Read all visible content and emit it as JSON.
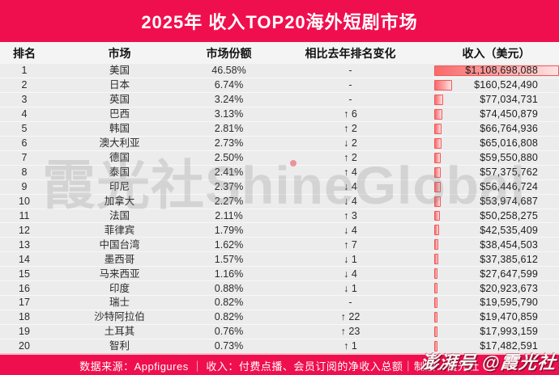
{
  "title": "2025年 收入TOP20海外短剧市场",
  "footer": {
    "text": "数据来源：Appfigures ｜ 收入：付费点播、会员订阅的净收入总额｜制图：霞光社"
  },
  "watermarks": {
    "center": "霞光社ShineGlobal",
    "corner": "澎湃号 @霞光社"
  },
  "colors": {
    "accent_red": "#F00F4E",
    "bar_border": "#EF5A5C",
    "bar_fill_start": "#F8696B",
    "bar_fill_end": "#FFE3E3",
    "table_bg": "#ECECEC"
  },
  "chart_data": {
    "type": "table",
    "title": "2025年 收入TOP20海外短剧市场",
    "columns": [
      "排名",
      "市场",
      "市场份额",
      "相比去年排名变化",
      "收入（美元）"
    ],
    "max_revenue": 1108698088,
    "rows": [
      {
        "rank": "1",
        "market": "美国",
        "share": "46.58%",
        "change": "-",
        "revenue": "$1,108,698,088",
        "value": 1108698088
      },
      {
        "rank": "2",
        "market": "日本",
        "share": "6.74%",
        "change": "-",
        "revenue": "$160,524,490",
        "value": 160524490
      },
      {
        "rank": "3",
        "market": "英国",
        "share": "3.24%",
        "change": "-",
        "revenue": "$77,034,731",
        "value": 77034731
      },
      {
        "rank": "4",
        "market": "巴西",
        "share": "3.13%",
        "change": "↑ 6",
        "revenue": "$74,450,879",
        "value": 74450879
      },
      {
        "rank": "5",
        "market": "韩国",
        "share": "2.81%",
        "change": "↑ 2",
        "revenue": "$66,764,936",
        "value": 66764936
      },
      {
        "rank": "6",
        "market": "澳大利亚",
        "share": "2.73%",
        "change": "↓ 2",
        "revenue": "$65,016,808",
        "value": 65016808
      },
      {
        "rank": "7",
        "market": "德国",
        "share": "2.50%",
        "change": "↑ 2",
        "revenue": "$59,550,880",
        "value": 59550880
      },
      {
        "rank": "8",
        "market": "泰国",
        "share": "2.41%",
        "change": "↑ 4",
        "revenue": "$57,375,762",
        "value": 57375762
      },
      {
        "rank": "9",
        "market": "印尼",
        "share": "2.37%",
        "change": "↓ 4",
        "revenue": "$56,446,724",
        "value": 56446724
      },
      {
        "rank": "10",
        "market": "加拿大",
        "share": "2.27%",
        "change": "↓ 4",
        "revenue": "$53,974,687",
        "value": 53974687
      },
      {
        "rank": "11",
        "market": "法国",
        "share": "2.11%",
        "change": "↑ 3",
        "revenue": "$50,258,275",
        "value": 50258275
      },
      {
        "rank": "12",
        "market": "菲律宾",
        "share": "1.79%",
        "change": "↓ 4",
        "revenue": "$42,535,409",
        "value": 42535409
      },
      {
        "rank": "13",
        "market": "中国台湾",
        "share": "1.62%",
        "change": "↑ 7",
        "revenue": "$38,454,503",
        "value": 38454503
      },
      {
        "rank": "14",
        "market": "墨西哥",
        "share": "1.57%",
        "change": "↓ 1",
        "revenue": "$37,385,612",
        "value": 37385612
      },
      {
        "rank": "15",
        "market": "马来西亚",
        "share": "1.16%",
        "change": "↓ 4",
        "revenue": "$27,647,599",
        "value": 27647599
      },
      {
        "rank": "16",
        "market": "印度",
        "share": "0.88%",
        "change": "↓ 1",
        "revenue": "$20,923,673",
        "value": 20923673
      },
      {
        "rank": "17",
        "market": "瑞士",
        "share": "0.82%",
        "change": "-",
        "revenue": "$19,595,790",
        "value": 19595790
      },
      {
        "rank": "18",
        "market": "沙特阿拉伯",
        "share": "0.82%",
        "change": "↑ 22",
        "revenue": "$19,470,859",
        "value": 19470859
      },
      {
        "rank": "19",
        "market": "土耳其",
        "share": "0.76%",
        "change": "↑ 23",
        "revenue": "$17,993,159",
        "value": 17993159
      },
      {
        "rank": "20",
        "market": "智利",
        "share": "0.73%",
        "change": "↑ 1",
        "revenue": "$17,482,591",
        "value": 17482591
      }
    ]
  }
}
